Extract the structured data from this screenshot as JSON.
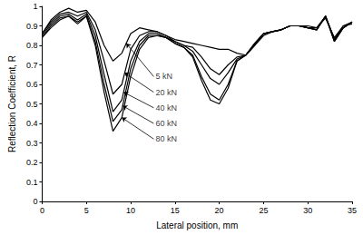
{
  "chart_data": {
    "type": "line",
    "x_label": "Lateral position, mm",
    "y_label": "Reflection Coefficient, R",
    "x": [
      0,
      1,
      2,
      3,
      4,
      5,
      6,
      7,
      8,
      9,
      10,
      11,
      12,
      13,
      14,
      15,
      16,
      17,
      18,
      19,
      20,
      21,
      22,
      23,
      24,
      25,
      26,
      27,
      28,
      29,
      30,
      31,
      32,
      33,
      34,
      35
    ],
    "series": [
      {
        "color": "#000000",
        "values": [
          0.86,
          0.93,
          0.97,
          0.99,
          0.97,
          0.98,
          0.92,
          0.8,
          0.72,
          0.76,
          0.86,
          0.89,
          0.88,
          0.87,
          0.85,
          0.83,
          0.82,
          0.81,
          0.8,
          0.79,
          0.78,
          0.78,
          0.76,
          0.75,
          0.8,
          0.85,
          0.87,
          0.88,
          0.9,
          0.9,
          0.9,
          0.89,
          0.94,
          0.84,
          0.9,
          0.91
        ]
      },
      {
        "color": "#000000",
        "values": [
          0.86,
          0.92,
          0.96,
          0.97,
          0.95,
          0.97,
          0.88,
          0.72,
          0.55,
          0.6,
          0.78,
          0.85,
          0.87,
          0.87,
          0.85,
          0.82,
          0.8,
          0.79,
          0.74,
          0.68,
          0.65,
          0.7,
          0.74,
          0.75,
          0.8,
          0.86,
          0.87,
          0.88,
          0.9,
          0.9,
          0.89,
          0.89,
          0.95,
          0.83,
          0.9,
          0.92
        ]
      },
      {
        "color": "#000000",
        "values": [
          0.85,
          0.91,
          0.95,
          0.96,
          0.93,
          0.96,
          0.85,
          0.65,
          0.46,
          0.52,
          0.72,
          0.82,
          0.86,
          0.86,
          0.84,
          0.82,
          0.8,
          0.77,
          0.7,
          0.63,
          0.6,
          0.66,
          0.73,
          0.75,
          0.81,
          0.86,
          0.87,
          0.88,
          0.9,
          0.9,
          0.89,
          0.88,
          0.95,
          0.83,
          0.89,
          0.92
        ]
      },
      {
        "color": "#000000",
        "values": [
          0.84,
          0.9,
          0.94,
          0.95,
          0.92,
          0.95,
          0.82,
          0.6,
          0.41,
          0.47,
          0.68,
          0.8,
          0.85,
          0.85,
          0.84,
          0.81,
          0.79,
          0.75,
          0.64,
          0.55,
          0.52,
          0.6,
          0.72,
          0.75,
          0.81,
          0.86,
          0.87,
          0.88,
          0.9,
          0.9,
          0.89,
          0.88,
          0.95,
          0.82,
          0.89,
          0.92
        ]
      },
      {
        "color": "#000000",
        "values": [
          0.84,
          0.89,
          0.93,
          0.95,
          0.91,
          0.95,
          0.8,
          0.56,
          0.36,
          0.43,
          0.64,
          0.78,
          0.84,
          0.85,
          0.84,
          0.81,
          0.79,
          0.74,
          0.62,
          0.52,
          0.5,
          0.58,
          0.72,
          0.75,
          0.81,
          0.86,
          0.87,
          0.88,
          0.9,
          0.9,
          0.89,
          0.88,
          0.95,
          0.82,
          0.89,
          0.92
        ]
      }
    ],
    "annotations": [
      {
        "text": "5 kN",
        "x": 12.6,
        "y": 0.64,
        "arrow_to": [
          9.5,
          0.81
        ]
      },
      {
        "text": "20 kN",
        "x": 12.6,
        "y": 0.56,
        "arrow_to": [
          9.3,
          0.66
        ]
      },
      {
        "text": "40 kN",
        "x": 12.6,
        "y": 0.48,
        "arrow_to": [
          9.2,
          0.56
        ]
      },
      {
        "text": "60 kN",
        "x": 12.6,
        "y": 0.4,
        "arrow_to": [
          9.1,
          0.49
        ]
      },
      {
        "text": "80 kN",
        "x": 12.6,
        "y": 0.32,
        "arrow_to": [
          9.0,
          0.43
        ]
      }
    ],
    "xlim": [
      0,
      35
    ],
    "xticks": [
      0,
      5,
      10,
      15,
      20,
      25,
      30,
      35
    ],
    "ylim": [
      0,
      1
    ],
    "yticks": [
      0,
      0.1,
      0.2,
      0.3,
      0.4,
      0.5,
      0.6,
      0.7,
      0.8,
      0.9,
      1
    ],
    "grid": false
  }
}
